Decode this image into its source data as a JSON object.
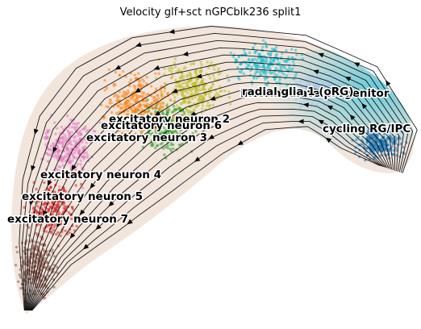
{
  "chart_data": {
    "type": "scatter",
    "subtype": "rna-velocity-stream-embedding",
    "title": "Velocity glf+sct nGPCblk236 split1",
    "axes_visible": false,
    "grid": false,
    "legend": "on data",
    "stream_color": "#000000",
    "clusters": [
      {
        "name": "cycling RG/IPC",
        "color": "#1f77b4"
      },
      {
        "name": "intermediate progenitor",
        "color": "#aec7e8"
      },
      {
        "name": "radial glia 1 (oRG)",
        "color": "#17becf"
      },
      {
        "name": "excitatory neuron 2",
        "color": "#bcbd22"
      },
      {
        "name": "excitatory neuron 6",
        "color": "#2ca02c"
      },
      {
        "name": "excitatory neuron 3",
        "color": "#ff7f0e"
      },
      {
        "name": "excitatory neuron 4",
        "color": "#e377c2"
      },
      {
        "name": "excitatory neuron 5",
        "color": "#d62728"
      },
      {
        "name": "excitatory neuron 7",
        "color": "#8c564b"
      }
    ]
  }
}
